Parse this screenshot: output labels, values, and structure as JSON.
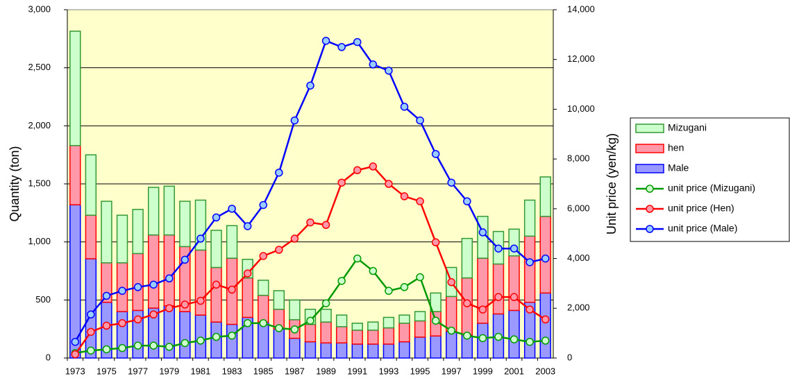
{
  "chart_data": {
    "type": "bar-line",
    "y_label": "Quantity (ton)",
    "y2_label": "Unit price (yen/kg)",
    "categories": [
      1973,
      null,
      1975,
      null,
      1977,
      null,
      1979,
      null,
      1981,
      null,
      1983,
      null,
      1985,
      null,
      1987,
      null,
      1989,
      null,
      1991,
      null,
      1993,
      null,
      1995,
      null,
      1997,
      null,
      1999,
      null,
      2001,
      null,
      2003
    ],
    "ylim": [
      0,
      3000
    ],
    "yticks": [
      0,
      500,
      {
        "value": 1000,
        "label": "1,000"
      },
      {
        "value": 1500,
        "label": "1,500"
      },
      {
        "value": 2000,
        "label": "2,000"
      },
      {
        "value": 2500,
        "label": "2,500"
      },
      {
        "value": 3000,
        "label": "3,000"
      }
    ],
    "y2lim": [
      0,
      14000
    ],
    "y2ticks": [
      0,
      {
        "value": 2000,
        "label": "2,000"
      },
      {
        "value": 4000,
        "label": "4,000"
      },
      {
        "value": 6000,
        "label": "6,000"
      },
      {
        "value": 8000,
        "label": "8,000"
      },
      {
        "value": 10000,
        "label": "10,000"
      },
      {
        "value": 12000,
        "label": "12,000"
      },
      {
        "value": 14000,
        "label": "14,000"
      }
    ],
    "grid": true,
    "background": "#ffffcc",
    "legend": "right",
    "series": [
      {
        "name": "Mizugani",
        "type": "bar",
        "color": "#ccffcc",
        "edgecolor": "#339933",
        "values": [
          985,
          520,
          530,
          410,
          380,
          410,
          420,
          390,
          430,
          320,
          280,
          160,
          130,
          160,
          170,
          130,
          110,
          100,
          60,
          70,
          90,
          70,
          80,
          160,
          250,
          340,
          360,
          280,
          230,
          310,
          340
        ]
      },
      {
        "name": "hen",
        "type": "bar",
        "color": "#ff99aa",
        "edgecolor": "#ff0000",
        "values": [
          510,
          375,
          340,
          420,
          490,
          630,
          610,
          560,
          560,
          470,
          570,
          340,
          230,
          170,
          160,
          150,
          180,
          140,
          120,
          120,
          140,
          160,
          140,
          210,
          300,
          490,
          560,
          430,
          470,
          570,
          660
        ]
      },
      {
        "name": "Male",
        "type": "bar",
        "color": "#9999ff",
        "edgecolor": "#0000ff",
        "values": [
          1320,
          855,
          480,
          400,
          410,
          430,
          450,
          400,
          370,
          310,
          290,
          350,
          310,
          250,
          170,
          140,
          130,
          130,
          120,
          120,
          120,
          140,
          180,
          190,
          230,
          200,
          300,
          380,
          410,
          480,
          560
        ]
      },
      {
        "name": "unit price (Mizugani)",
        "type": "line",
        "axis": "y2",
        "color": "#009900",
        "marker_color": "#ccffcc",
        "values": [
          200,
          300,
          350,
          400,
          500,
          500,
          450,
          600,
          700,
          850,
          900,
          1400,
          1400,
          1200,
          1150,
          1500,
          2200,
          3100,
          4000,
          3500,
          2700,
          2850,
          3250,
          1500,
          1100,
          900,
          800,
          850,
          750,
          650,
          700
        ]
      },
      {
        "name": "unit price (Hen)",
        "type": "line",
        "axis": "y2",
        "color": "#ff0000",
        "marker_color": "#ff99aa",
        "values": [
          150,
          1050,
          1300,
          1400,
          1550,
          1750,
          2000,
          2150,
          2300,
          2950,
          2750,
          3400,
          4100,
          4350,
          4800,
          5450,
          5350,
          7050,
          7550,
          7700,
          7000,
          6500,
          6300,
          4650,
          3050,
          2200,
          1950,
          2450,
          2450,
          1950,
          1550
        ]
      },
      {
        "name": "unit price (Male)",
        "type": "line",
        "axis": "y2",
        "color": "#0000ff",
        "marker_color": "#99ccff",
        "values": [
          650,
          1750,
          2500,
          2700,
          2850,
          2950,
          3200,
          3950,
          4800,
          5650,
          6000,
          5300,
          6150,
          7450,
          9550,
          10950,
          12750,
          12500,
          12700,
          11800,
          11550,
          10100,
          9550,
          8200,
          7050,
          6300,
          5050,
          4400,
          4400,
          3850,
          4000
        ]
      }
    ]
  }
}
